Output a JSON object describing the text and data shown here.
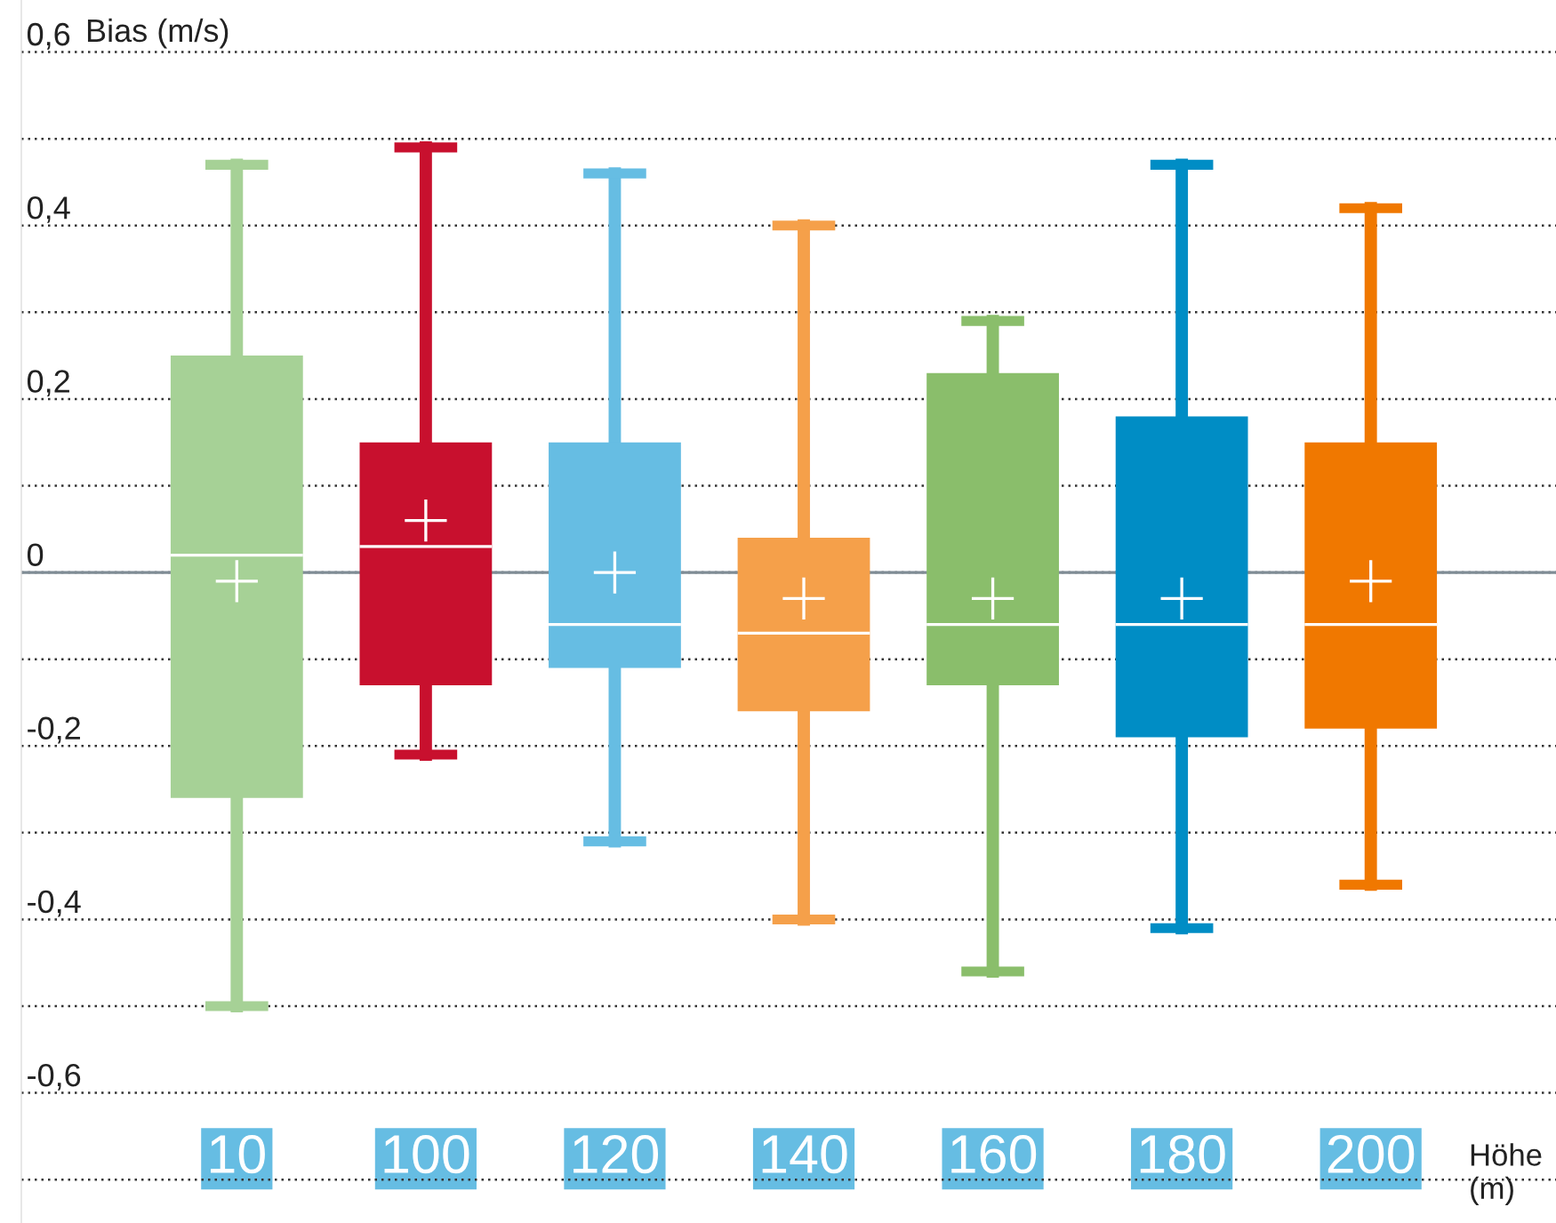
{
  "chart_data": {
    "type": "box",
    "xlabel": "Höhe\n(m)",
    "ylabel": "Bias (m/s)",
    "categories": [
      "10",
      "100",
      "120",
      "140",
      "160",
      "180",
      "200"
    ],
    "colors": [
      "#a6d196",
      "#c8102e",
      "#66bde3",
      "#f5a04a",
      "#8abe6b",
      "#008dc5",
      "#f07800"
    ],
    "boxes": [
      {
        "low": -0.5,
        "q1": -0.26,
        "median": 0.02,
        "q3": 0.25,
        "high": 0.47
      },
      {
        "low": -0.21,
        "q1": -0.13,
        "median": 0.03,
        "q3": 0.15,
        "high": 0.49
      },
      {
        "low": -0.31,
        "q1": -0.11,
        "median": -0.06,
        "q3": 0.15,
        "high": 0.46
      },
      {
        "low": -0.4,
        "q1": -0.16,
        "median": -0.07,
        "q3": 0.04,
        "high": 0.4
      },
      {
        "low": -0.46,
        "q1": -0.13,
        "median": -0.06,
        "q3": 0.23,
        "high": 0.29
      },
      {
        "low": -0.41,
        "q1": -0.19,
        "median": -0.06,
        "q3": 0.18,
        "high": 0.47
      },
      {
        "low": -0.36,
        "q1": -0.18,
        "median": -0.06,
        "q3": 0.15,
        "high": 0.42
      }
    ],
    "series": [
      {
        "type": "scatter",
        "color": "#ffffff",
        "marker": "cross",
        "x": [
          "10",
          "100",
          "120",
          "140",
          "160",
          "180",
          "200"
        ],
        "values": [
          -0.01,
          0.06,
          0.0,
          -0.03,
          -0.03,
          -0.03,
          -0.01
        ]
      }
    ],
    "ylim": [
      -0.75,
      0.66
    ],
    "yticks": [
      {
        "value": 0.6,
        "label": "0,6"
      },
      {
        "value": 0.5,
        "label": null
      },
      {
        "value": 0.4,
        "label": "0,4"
      },
      {
        "value": 0.3,
        "label": null
      },
      {
        "value": 0.2,
        "label": "0,2"
      },
      {
        "value": 0.1,
        "label": null
      },
      {
        "value": 0,
        "label": "0"
      },
      {
        "value": -0.1,
        "label": null
      },
      {
        "value": -0.2,
        "label": "-0,2"
      },
      {
        "value": -0.3,
        "label": null
      },
      {
        "value": -0.4,
        "label": "-0,4"
      },
      {
        "value": -0.5,
        "label": null
      },
      {
        "value": -0.6,
        "label": "-0,6"
      },
      {
        "value": -0.7,
        "label": null
      }
    ],
    "grid": "y",
    "ref_lines": [
      {
        "axis": "y",
        "value": 0,
        "color": "#7f8c95"
      }
    ]
  }
}
